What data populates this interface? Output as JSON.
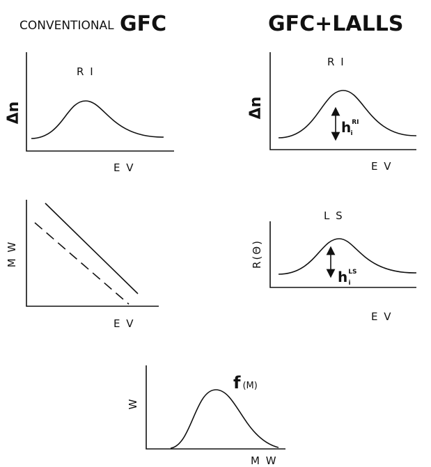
{
  "header": {
    "left_small": "CONVENTIONAL",
    "left_big": "GFC",
    "right": "GFC+LALLS"
  },
  "panels": [
    {
      "title": "R I",
      "y_label": "Δn",
      "x_label": "E V"
    },
    {
      "y_label": "M W",
      "x_label": "E V"
    },
    {
      "title": "R I",
      "y_label": "Δn",
      "x_label": "E V",
      "height_label": {
        "base": "h",
        "sub": "i",
        "sup": "RI"
      }
    },
    {
      "title": "L S",
      "y_label": "R(Θ)",
      "x_label": "E V",
      "height_label": {
        "base": "h",
        "sub": "i",
        "sup": "LS"
      }
    },
    {
      "title": "f",
      "title_suffix": "(M)",
      "y_label": "W",
      "x_label": "M W"
    }
  ]
}
